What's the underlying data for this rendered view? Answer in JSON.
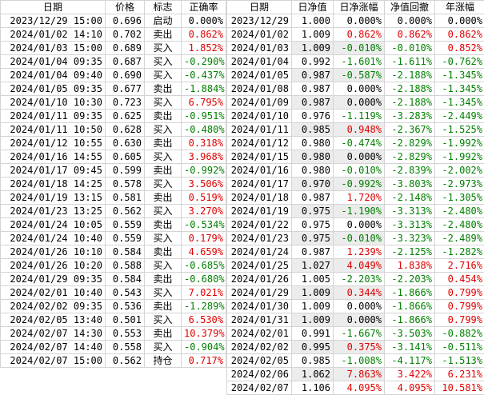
{
  "trades": {
    "headers": [
      "日期",
      "价格",
      "标志",
      "正确率"
    ],
    "rows": [
      [
        "2023/12/29 15:00",
        "0.696",
        "启动",
        "0.000%"
      ],
      [
        "2024/01/02 14:10",
        "0.702",
        "卖出",
        "0.862%"
      ],
      [
        "2024/01/03 15:00",
        "0.689",
        "买入",
        "1.852%"
      ],
      [
        "2024/01/04 09:35",
        "0.687",
        "买入",
        "-0.290%"
      ],
      [
        "2024/01/04 09:40",
        "0.690",
        "买入",
        "-0.437%"
      ],
      [
        "2024/01/05 09:35",
        "0.677",
        "卖出",
        "-1.884%"
      ],
      [
        "2024/01/10 10:30",
        "0.723",
        "买入",
        "6.795%"
      ],
      [
        "2024/01/11 09:35",
        "0.625",
        "卖出",
        "-0.951%"
      ],
      [
        "2024/01/11 10:50",
        "0.628",
        "买入",
        "-0.480%"
      ],
      [
        "2024/01/12 10:55",
        "0.630",
        "卖出",
        "0.318%"
      ],
      [
        "2024/01/16 14:55",
        "0.605",
        "买入",
        "3.968%"
      ],
      [
        "2024/01/17 09:45",
        "0.599",
        "卖出",
        "-0.992%"
      ],
      [
        "2024/01/18 14:25",
        "0.578",
        "买入",
        "3.506%"
      ],
      [
        "2024/01/19 13:15",
        "0.581",
        "卖出",
        "0.519%"
      ],
      [
        "2024/01/23 13:25",
        "0.562",
        "买入",
        "3.270%"
      ],
      [
        "2024/01/24 10:05",
        "0.559",
        "卖出",
        "-0.534%"
      ],
      [
        "2024/01/24 10:40",
        "0.559",
        "买入",
        "0.179%"
      ],
      [
        "2024/01/26 10:10",
        "0.584",
        "卖出",
        "4.659%"
      ],
      [
        "2024/01/26 10:20",
        "0.588",
        "买入",
        "-0.685%"
      ],
      [
        "2024/01/29 09:35",
        "0.584",
        "卖出",
        "-0.680%"
      ],
      [
        "2024/02/01 10:40",
        "0.543",
        "买入",
        "7.021%"
      ],
      [
        "2024/02/02 09:35",
        "0.536",
        "卖出",
        "-1.289%"
      ],
      [
        "2024/02/05 13:40",
        "0.501",
        "买入",
        "6.530%"
      ],
      [
        "2024/02/07 14:30",
        "0.553",
        "卖出",
        "10.379%"
      ],
      [
        "2024/02/07 14:40",
        "0.558",
        "买入",
        "-0.904%"
      ],
      [
        "2024/02/07 15:00",
        "0.562",
        "持仓",
        "0.717%"
      ]
    ]
  },
  "daily": {
    "headers": [
      "日期",
      "日净值",
      "日净涨幅",
      "净值回撤",
      "年涨幅"
    ],
    "rows": [
      [
        "2023/12/29",
        "1.000",
        "0.000%",
        "0.000%",
        "0.000%"
      ],
      [
        "2024/01/02",
        "1.009",
        "0.862%",
        "0.862%",
        "0.862%"
      ],
      [
        "2024/01/03",
        "1.009",
        "-0.010%",
        "-0.010%",
        "0.852%"
      ],
      [
        "2024/01/04",
        "0.992",
        "-1.601%",
        "-1.611%",
        "-0.762%"
      ],
      [
        "2024/01/05",
        "0.987",
        "-0.587%",
        "-2.188%",
        "-1.345%"
      ],
      [
        "2024/01/08",
        "0.987",
        "0.000%",
        "-2.188%",
        "-1.345%"
      ],
      [
        "2024/01/09",
        "0.987",
        "0.000%",
        "-2.188%",
        "-1.345%"
      ],
      [
        "2024/01/10",
        "0.976",
        "-1.119%",
        "-3.283%",
        "-2.449%"
      ],
      [
        "2024/01/11",
        "0.985",
        "0.948%",
        "-2.367%",
        "-1.525%"
      ],
      [
        "2024/01/12",
        "0.980",
        "-0.474%",
        "-2.829%",
        "-1.992%"
      ],
      [
        "2024/01/15",
        "0.980",
        "0.000%",
        "-2.829%",
        "-1.992%"
      ],
      [
        "2024/01/16",
        "0.980",
        "-0.010%",
        "-2.839%",
        "-2.002%"
      ],
      [
        "2024/01/17",
        "0.970",
        "-0.992%",
        "-3.803%",
        "-2.973%"
      ],
      [
        "2024/01/18",
        "0.987",
        "1.720%",
        "-2.148%",
        "-1.305%"
      ],
      [
        "2024/01/19",
        "0.975",
        "-1.190%",
        "-3.313%",
        "-2.480%"
      ],
      [
        "2024/01/22",
        "0.975",
        "0.000%",
        "-3.313%",
        "-2.480%"
      ],
      [
        "2024/01/23",
        "0.975",
        "-0.010%",
        "-3.323%",
        "-2.489%"
      ],
      [
        "2024/01/24",
        "0.987",
        "1.239%",
        "-2.125%",
        "-1.282%"
      ],
      [
        "2024/01/25",
        "1.027",
        "4.049%",
        "1.838%",
        "2.716%"
      ],
      [
        "2024/01/26",
        "1.005",
        "-2.203%",
        "-2.203%",
        "0.454%"
      ],
      [
        "2024/01/29",
        "1.009",
        "0.344%",
        "-1.866%",
        "0.799%"
      ],
      [
        "2024/01/30",
        "1.009",
        "0.000%",
        "-1.866%",
        "0.799%"
      ],
      [
        "2024/01/31",
        "1.009",
        "0.000%",
        "-1.866%",
        "0.799%"
      ],
      [
        "2024/02/01",
        "0.991",
        "-1.667%",
        "-3.503%",
        "-0.882%"
      ],
      [
        "2024/02/02",
        "0.995",
        "0.375%",
        "-3.141%",
        "-0.511%"
      ],
      [
        "2024/02/05",
        "0.985",
        "-1.008%",
        "-4.117%",
        "-1.513%"
      ],
      [
        "2024/02/06",
        "1.062",
        "7.863%",
        "3.422%",
        "6.231%"
      ],
      [
        "2024/02/07",
        "1.106",
        "4.095%",
        "4.095%",
        "10.581%"
      ]
    ]
  }
}
